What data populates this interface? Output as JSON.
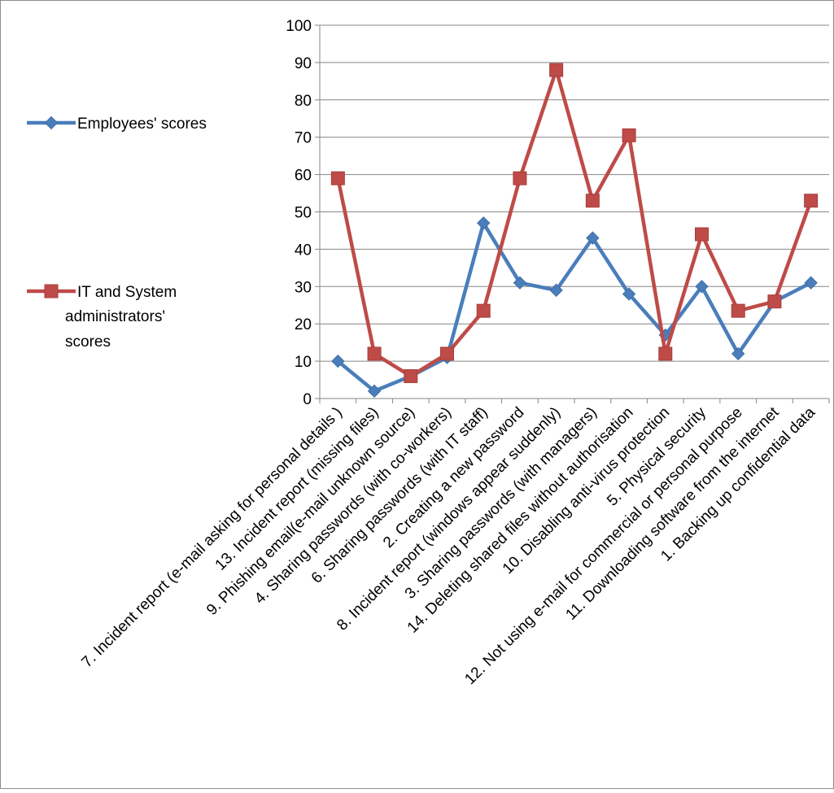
{
  "chart_data": {
    "type": "line",
    "categories": [
      "7. Incident report (e-mail asking for personal details )",
      "13. Incident report (missing files)",
      "9. Phishing email(e-mail unknown source)",
      "4. Sharing passwords (with co-workers)",
      "6. Sharing passwords (with IT staff)",
      "2. Creating a new password",
      "8. Incident report (windows appear suddenly)",
      "3. Sharing passwords (with managers)",
      "14. Deleting shared files without authorisation",
      "10. Disabling anti-virus protection",
      "5. Physical security",
      "12. Not using e-mail for commercial or personal purpose",
      "11. Downloading software from the internet",
      "1. Backing up confidential data"
    ],
    "series": [
      {
        "name": "Employees' scores",
        "color": "#4a7ebb",
        "marker": "diamond",
        "values": [
          10,
          2,
          6,
          11,
          47,
          31,
          29,
          43,
          28,
          17,
          30,
          12,
          26,
          31
        ]
      },
      {
        "name": "IT and System administrators' scores",
        "color": "#be4b48",
        "marker": "square",
        "values": [
          59,
          12,
          6,
          12,
          23.5,
          59,
          88,
          53,
          70.5,
          12,
          44,
          23.5,
          26,
          53
        ]
      }
    ],
    "yticks": [
      "0",
      "10",
      "20",
      "30",
      "40",
      "50",
      "60",
      "70",
      "80",
      "90",
      "100"
    ],
    "ylim": [
      0,
      100
    ],
    "grid": "horizontal",
    "legend": "left",
    "title": "",
    "xlabel": "",
    "ylabel": ""
  }
}
